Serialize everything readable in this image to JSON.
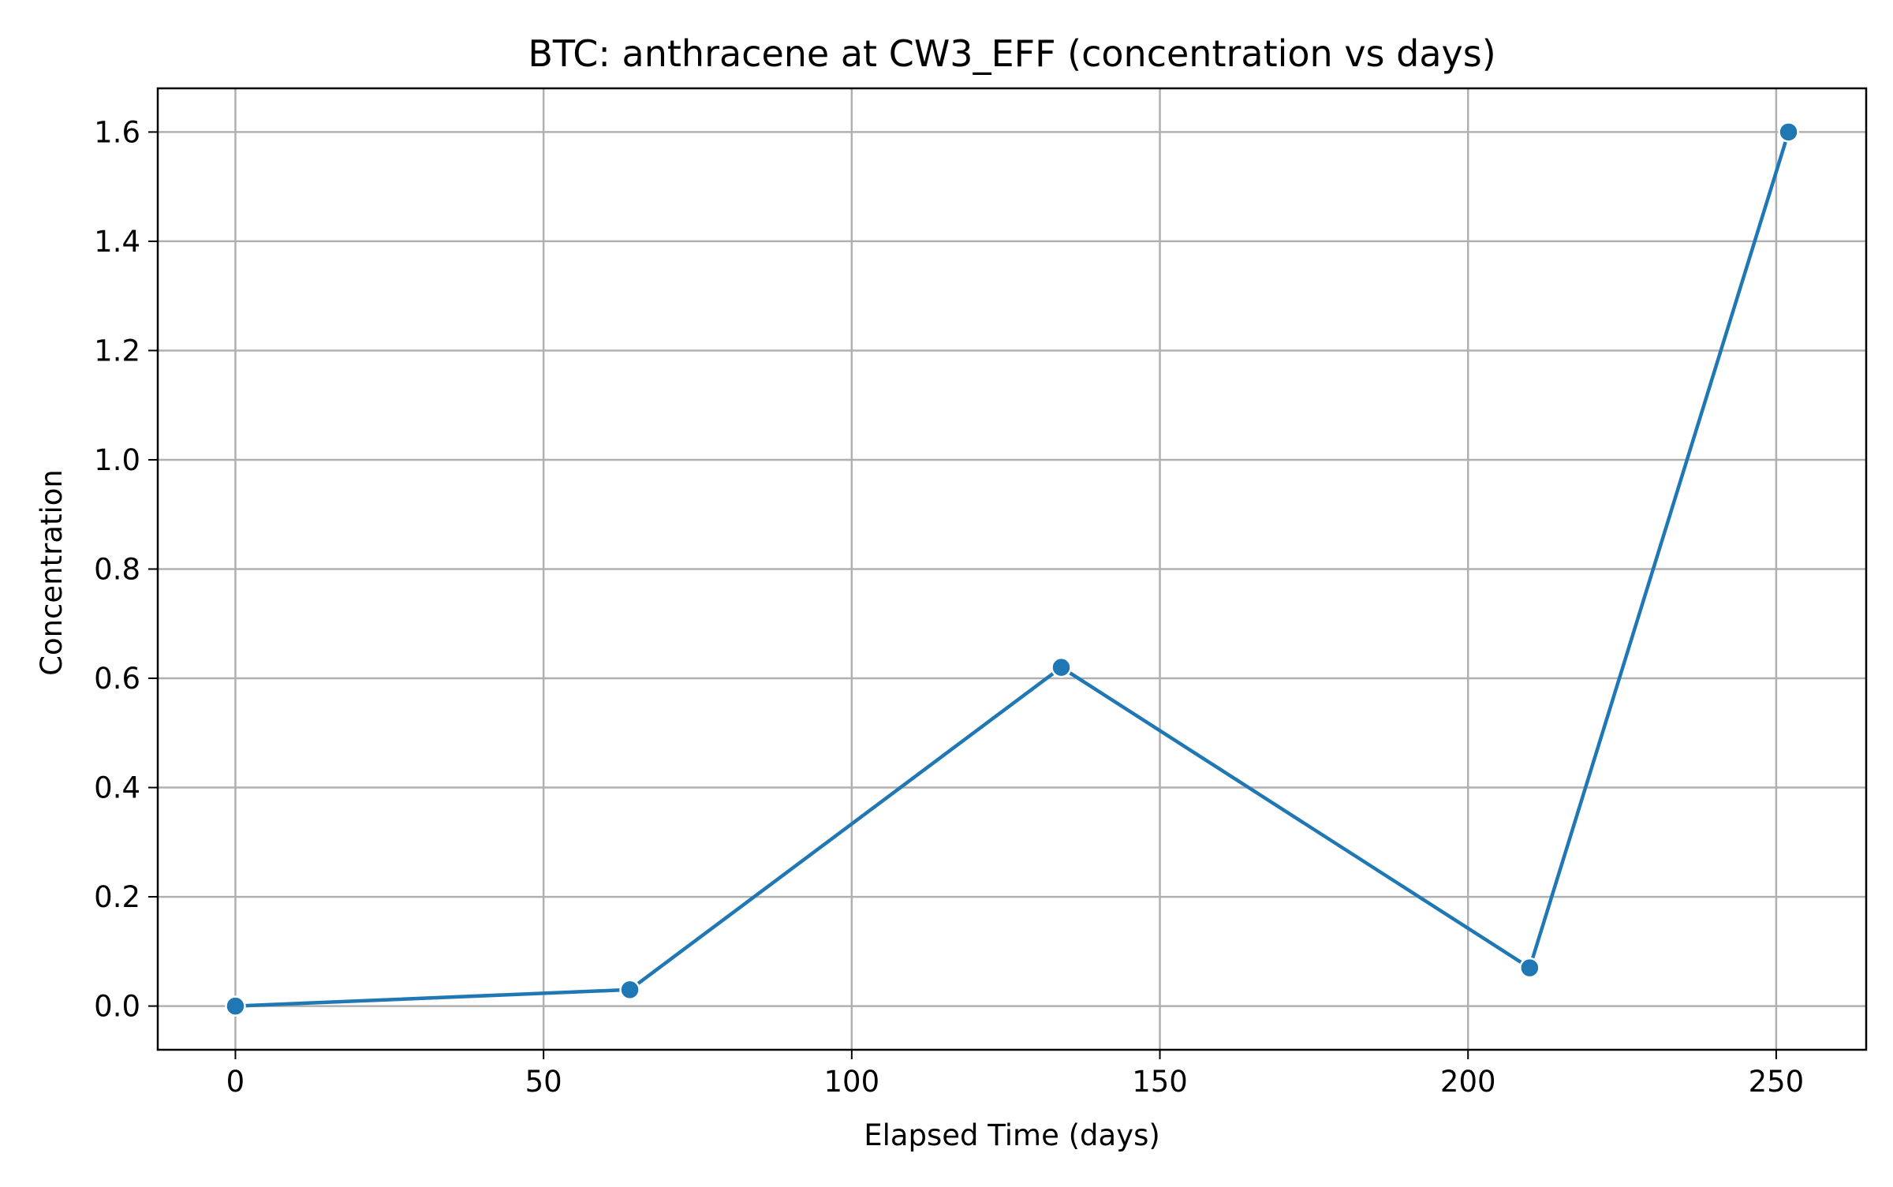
{
  "chart_data": {
    "type": "line",
    "title": "BTC: anthracene at CW3_EFF (concentration vs days)",
    "xlabel": "Elapsed Time (days)",
    "ylabel": "Concentration",
    "xlim": [
      -12.6,
      264.6
    ],
    "ylim": [
      -0.08,
      1.68
    ],
    "xticks": [
      0,
      50,
      100,
      150,
      200,
      250
    ],
    "yticks": [
      0.0,
      0.2,
      0.4,
      0.6,
      0.8,
      1.0,
      1.2,
      1.4,
      1.6
    ],
    "xtick_labels": [
      "0",
      "50",
      "100",
      "150",
      "200",
      "250"
    ],
    "ytick_labels": [
      "0.0",
      "0.2",
      "0.4",
      "0.6",
      "0.8",
      "1.0",
      "1.2",
      "1.4",
      "1.6"
    ],
    "grid": true,
    "series": [
      {
        "color": "#1f77b4",
        "x": [
          0,
          64,
          134,
          210,
          252
        ],
        "y": [
          0.0,
          0.03,
          0.62,
          0.07,
          1.6
        ]
      }
    ]
  }
}
